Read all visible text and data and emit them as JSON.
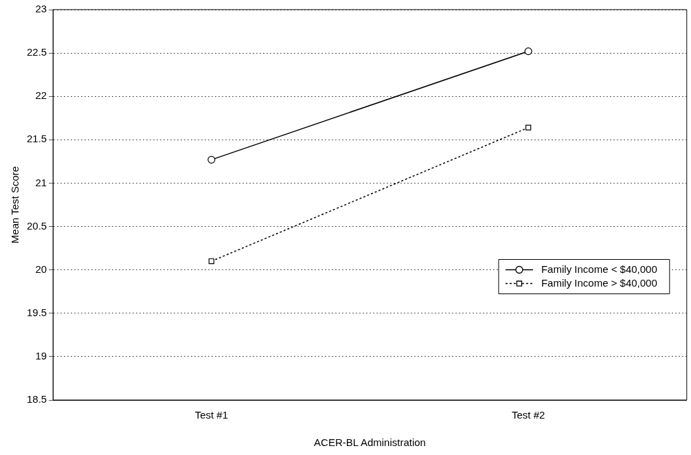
{
  "chart_data": {
    "type": "line",
    "xlabel": "ACER-BL Administration",
    "ylabel": "Mean Test Score",
    "categories": [
      "Test #1",
      "Test #2"
    ],
    "series": [
      {
        "name": "Family Income < $40,000",
        "color": "#000000",
        "values": [
          21.27,
          22.52
        ],
        "marker": "circle",
        "line_style": "solid"
      },
      {
        "name": "Family Income > $40,000",
        "color": "#000000",
        "values": [
          20.1,
          21.64
        ],
        "marker": "square",
        "line_style": "dotted"
      }
    ],
    "ylim": [
      18.5,
      23
    ],
    "yticks": [
      18.5,
      19,
      19.5,
      20,
      20.5,
      21,
      21.5,
      22,
      22.5,
      23
    ],
    "grid": "y",
    "legend": "bottom right"
  }
}
